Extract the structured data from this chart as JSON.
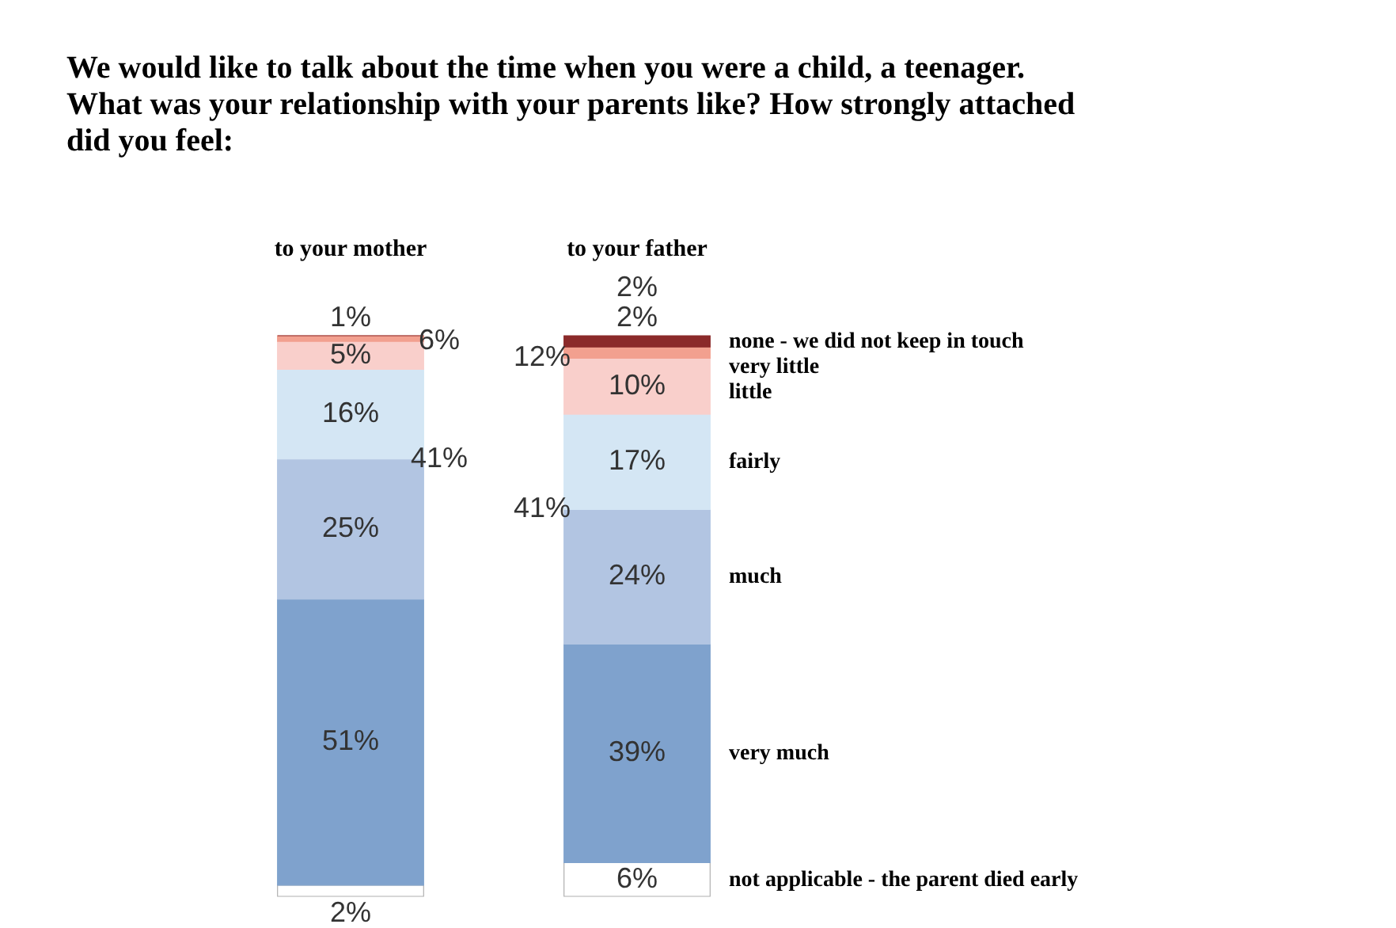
{
  "chart_data": {
    "type": "bar",
    "title": "We would like to talk about the time when you were a child, a teenager.\nWhat was your relationship with your parents like? How strongly attached\ndid you feel:",
    "categories": [
      "to your mother",
      "to your father"
    ],
    "stacked": true,
    "tick_labels": "x",
    "series": [
      {
        "name": "not applicable - the parent died early",
        "color": "#ffffff",
        "values": [
          2,
          6
        ],
        "value_labels": [
          "2%",
          "6%"
        ]
      },
      {
        "name": "very much",
        "color": "#7fa2cd",
        "values": [
          51,
          39
        ],
        "value_labels": [
          "51%",
          "39%"
        ]
      },
      {
        "name": "much",
        "color": "#b2c5e2",
        "values": [
          25,
          24
        ],
        "value_labels": [
          "25%",
          "24%"
        ]
      },
      {
        "name": "fairly",
        "color": "#d4e6f4",
        "values": [
          16,
          17
        ],
        "value_labels": [
          "16%",
          "17%"
        ]
      },
      {
        "name": "little",
        "color": "#f9cfcb",
        "values": [
          5,
          10
        ],
        "value_labels": [
          "5%",
          "10%"
        ]
      },
      {
        "name": "very little",
        "color": "#f2a08f",
        "values": [
          1,
          2
        ],
        "value_labels": [
          "1%",
          "2%"
        ]
      },
      {
        "name": "none - we did not keep in touch",
        "color": "#8b2a2a",
        "values": [
          0,
          2
        ],
        "value_labels": [
          null,
          "2%"
        ]
      }
    ],
    "annotations": [
      {
        "text": "6%",
        "x": "to your mother",
        "y": 99
      },
      {
        "text": "41%",
        "x": "to your mother",
        "y": 78
      },
      {
        "text": "12%",
        "x": "to your father",
        "y": 96
      },
      {
        "text": "41%",
        "x": "to your father",
        "y": 69
      }
    ]
  }
}
